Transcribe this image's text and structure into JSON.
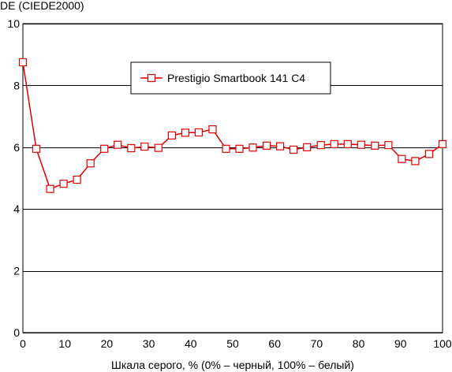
{
  "chart_data": {
    "type": "line",
    "title": "",
    "ylabel": "DE (CIEDE2000)",
    "xlabel": "Шкала серого, % (0% – черный, 100% – белый)",
    "xlim": [
      0,
      100
    ],
    "ylim": [
      0,
      10
    ],
    "x_ticks": [
      0,
      10,
      20,
      30,
      40,
      50,
      60,
      70,
      80,
      90,
      100
    ],
    "y_ticks": [
      0,
      2,
      4,
      6,
      8,
      10
    ],
    "grid": "horizontal",
    "legend_position": "top-center",
    "series": [
      {
        "name": "Prestigio Smartbook 141 C4",
        "color": "#e00000",
        "marker": "open-square",
        "x": [
          0,
          3.2,
          6.5,
          9.7,
          12.9,
          16.1,
          19.4,
          22.6,
          25.8,
          29,
          32.3,
          35.5,
          38.7,
          41.9,
          45.2,
          48.4,
          51.6,
          54.8,
          58.1,
          61.3,
          64.5,
          67.7,
          71,
          74.2,
          77.4,
          80.6,
          83.9,
          87.1,
          90.3,
          93.5,
          96.8,
          100
        ],
        "y": [
          8.75,
          5.95,
          4.65,
          4.82,
          4.95,
          5.48,
          5.95,
          6.08,
          5.97,
          6.02,
          5.98,
          6.38,
          6.47,
          6.48,
          6.58,
          5.95,
          5.95,
          5.99,
          6.05,
          6.03,
          5.92,
          6.0,
          6.07,
          6.1,
          6.1,
          6.08,
          6.05,
          6.07,
          5.62,
          5.55,
          5.78,
          6.1
        ]
      }
    ]
  }
}
